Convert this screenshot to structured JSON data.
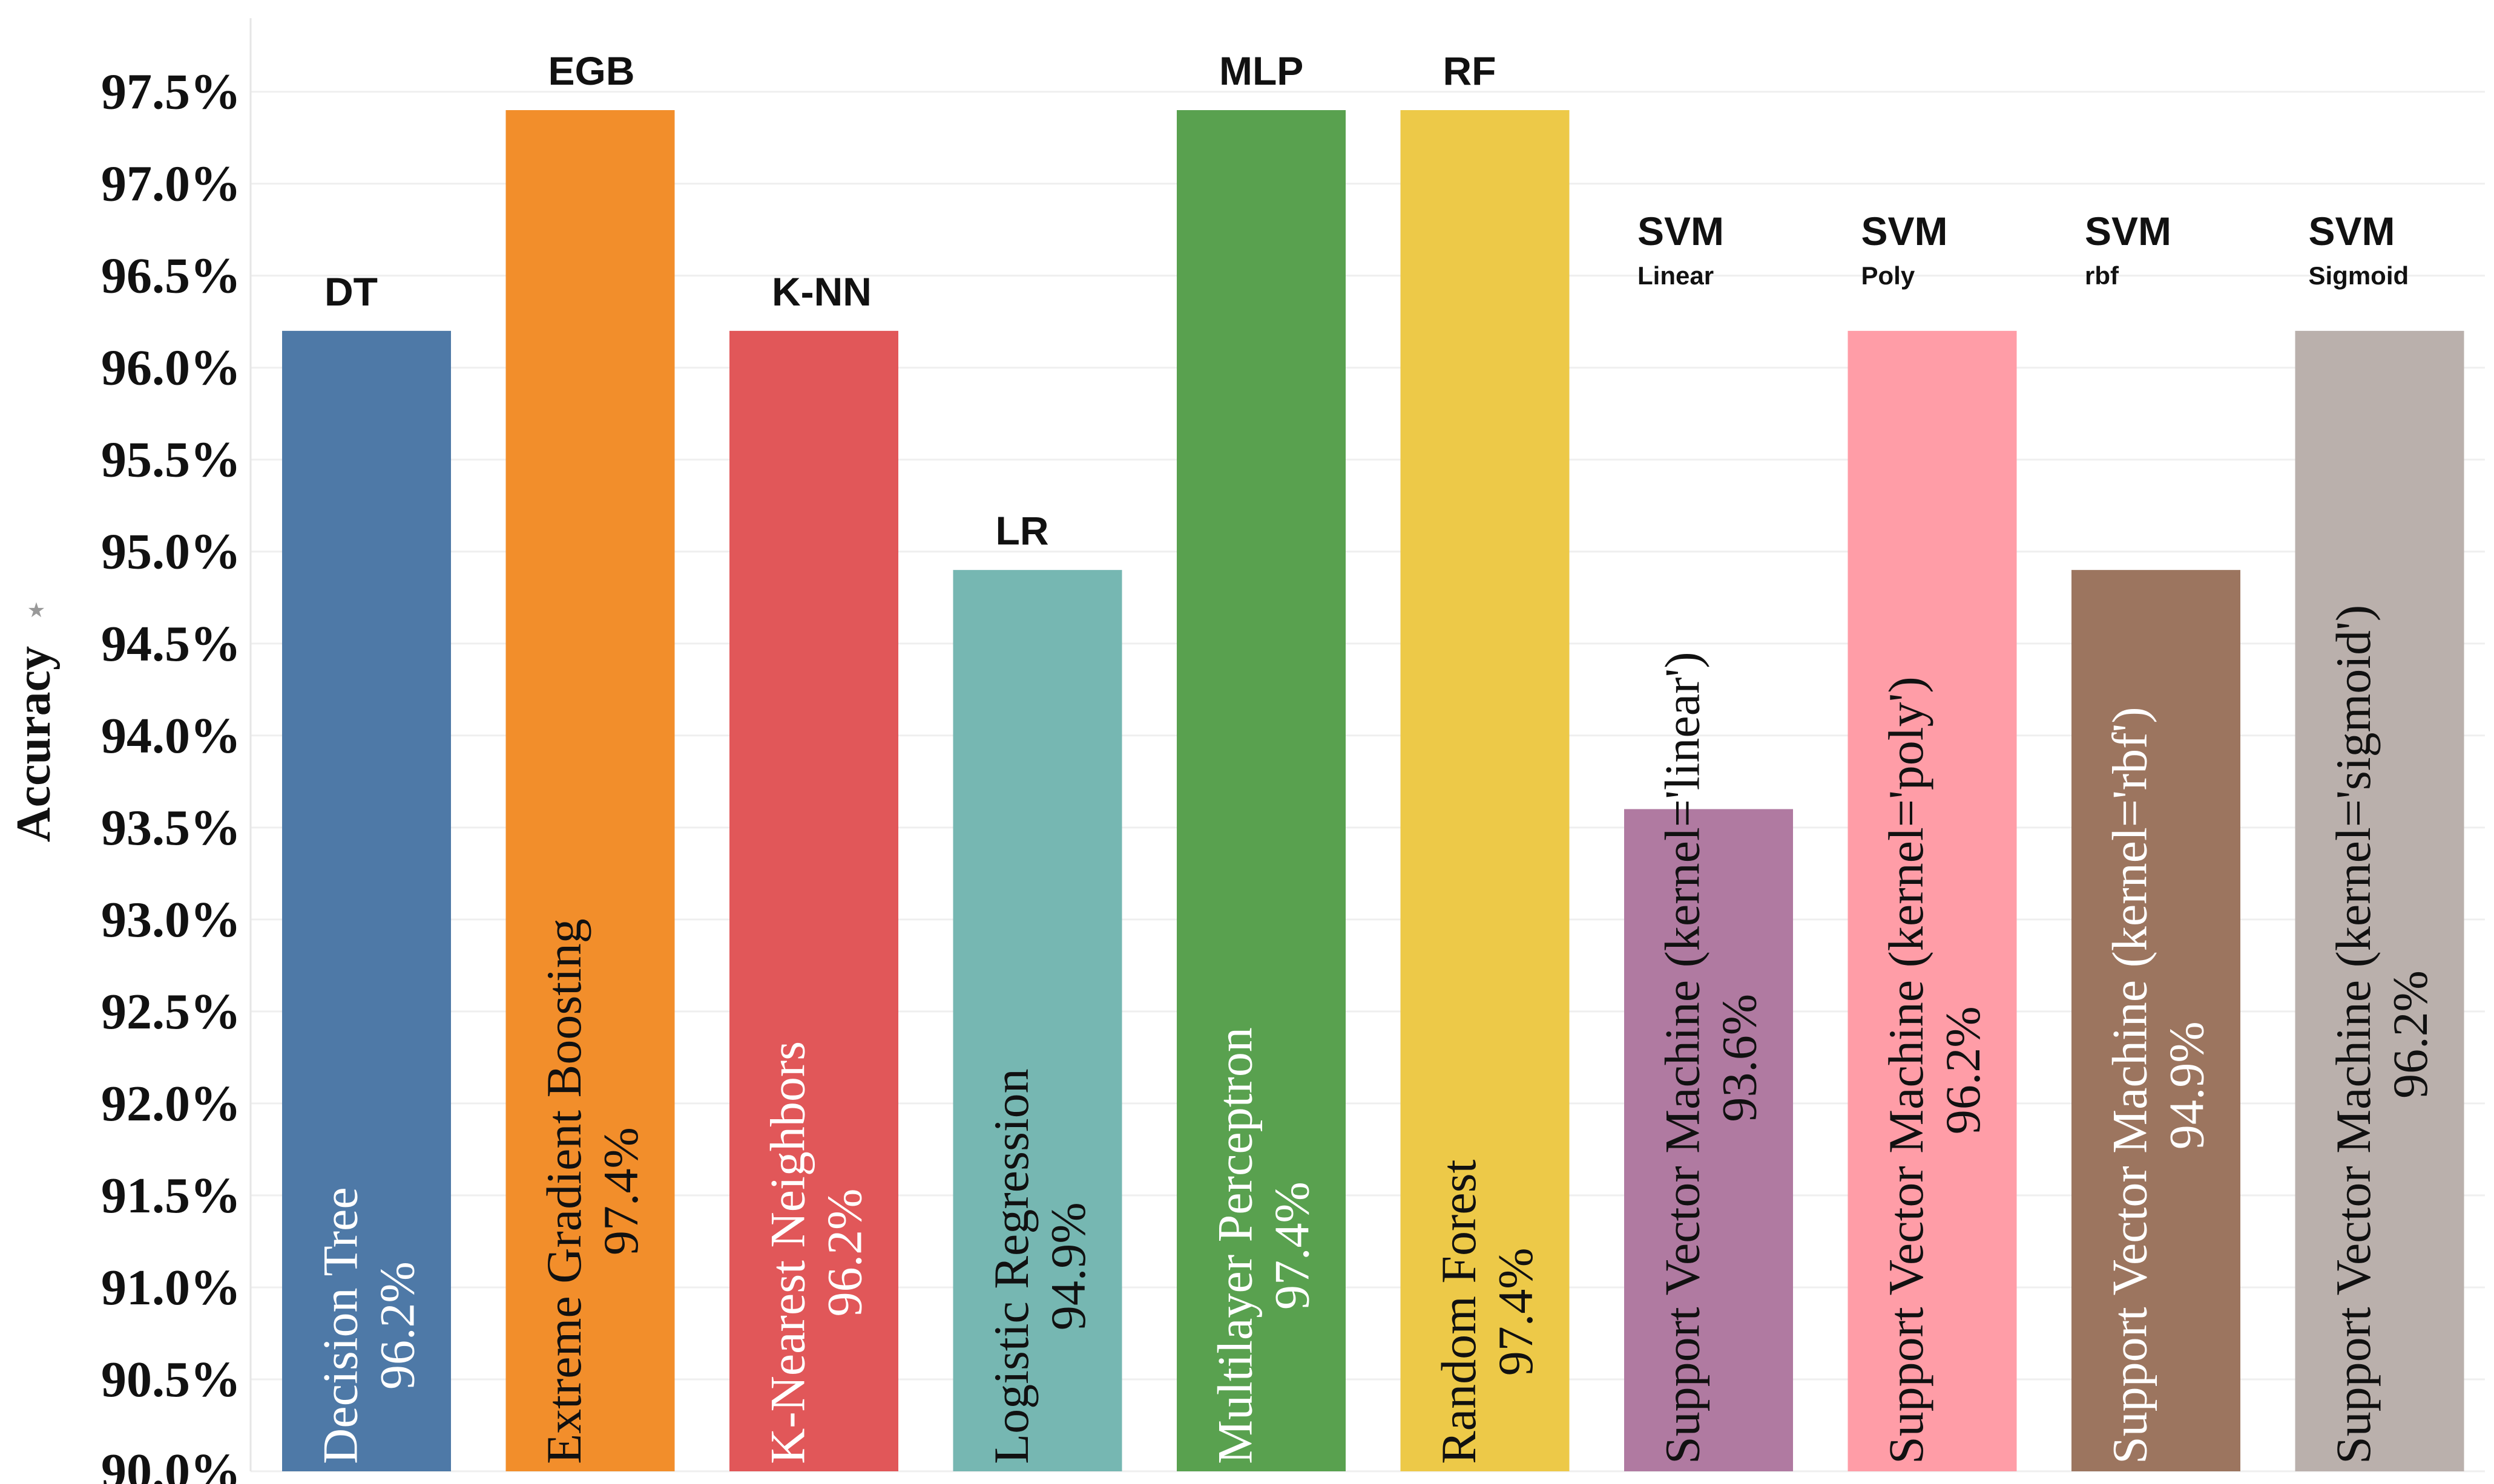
{
  "chart_data": {
    "type": "bar",
    "title": "",
    "xlabel": "",
    "ylabel": "Accuracy",
    "ylim": [
      90.0,
      97.9
    ],
    "grid": true,
    "y_ticks": [
      "90.0%",
      "90.5%",
      "91.0%",
      "91.5%",
      "92.0%",
      "92.5%",
      "93.0%",
      "93.5%",
      "94.0%",
      "94.5%",
      "95.0%",
      "95.5%",
      "96.0%",
      "96.5%",
      "97.0%",
      "97.5%"
    ],
    "y_tick_values": [
      90.0,
      90.5,
      91.0,
      91.5,
      92.0,
      92.5,
      93.0,
      93.5,
      94.0,
      94.5,
      95.0,
      95.5,
      96.0,
      96.5,
      97.0,
      97.5
    ],
    "bars": [
      {
        "abbr": "DT",
        "sub": "",
        "name": "Decision Tree",
        "value": 96.2,
        "value_label": "96.2%",
        "color": "#4e79a7",
        "text_color": "#ffffff"
      },
      {
        "abbr": "EGB",
        "sub": "",
        "name": "Extreme Gradient Boosting",
        "value": 97.4,
        "value_label": "97.4%",
        "color": "#f28e2b",
        "text_color": "#111111"
      },
      {
        "abbr": "K-NN",
        "sub": "",
        "name": "K-Nearest Neighbors",
        "value": 96.2,
        "value_label": "96.2%",
        "color": "#e15759",
        "text_color": "#ffffff"
      },
      {
        "abbr": "LR",
        "sub": "",
        "name": "Logistic Regression",
        "value": 94.9,
        "value_label": "94.9%",
        "color": "#76b7b2",
        "text_color": "#111111"
      },
      {
        "abbr": "MLP",
        "sub": "",
        "name": "Multilayer Perceptron",
        "value": 97.4,
        "value_label": "97.4%",
        "color": "#59a14f",
        "text_color": "#ffffff"
      },
      {
        "abbr": "RF",
        "sub": "",
        "name": "Random Forest",
        "value": 97.4,
        "value_label": "97.4%",
        "color": "#edc948",
        "text_color": "#111111"
      },
      {
        "abbr": "SVM",
        "sub": "Linear",
        "name": "Support Vector Machine (kernel='linear')",
        "value": 93.6,
        "value_label": "93.6%",
        "color": "#b07aa1",
        "text_color": "#111111"
      },
      {
        "abbr": "SVM",
        "sub": "Poly",
        "name": "Support Vector Machine (kernel='poly')",
        "value": 96.2,
        "value_label": "96.2%",
        "color": "#ff9da7",
        "text_color": "#111111"
      },
      {
        "abbr": "SVM",
        "sub": "rbf",
        "name": "Support Vector Machine (kernel='rbf')",
        "value": 94.9,
        "value_label": "94.9%",
        "color": "#9c755f",
        "text_color": "#ffffff"
      },
      {
        "abbr": "SVM",
        "sub": "Sigmoid",
        "name": "Support Vector Machine (kernel='sigmoid')",
        "value": 96.2,
        "value_label": "96.2%",
        "color": "#bab0ac",
        "text_color": "#111111"
      }
    ]
  }
}
